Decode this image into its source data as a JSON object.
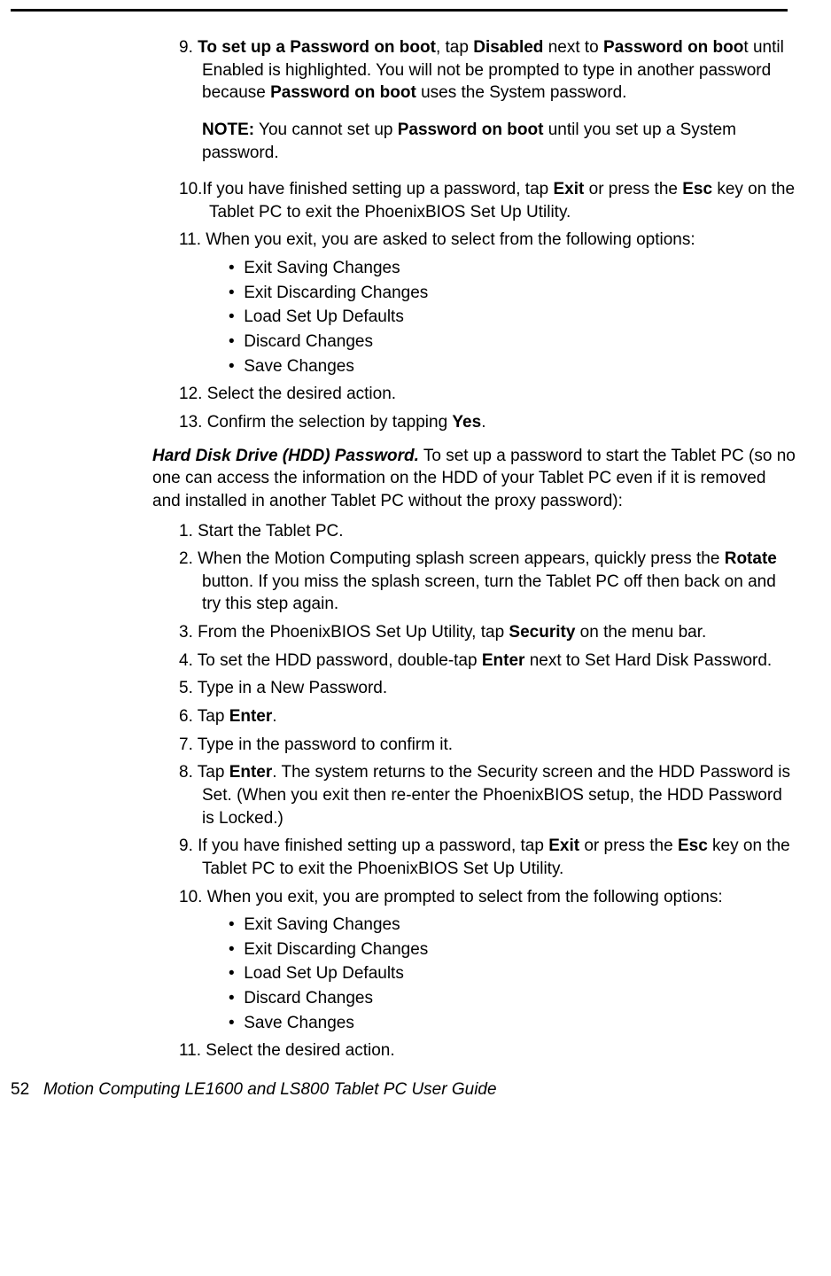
{
  "step9": {
    "prefix": "9. ",
    "t1": "To set up a Password on boot",
    "t2": ", tap ",
    "t3": "Disabled",
    "t4": " next to ",
    "t5": "Password on boo",
    "t6": "t until Enabled is highlighted. You will not be prompted to type in another password because ",
    "t7": "Password on boot",
    "t8": " uses the System password."
  },
  "note": {
    "label": "NOTE:",
    "t1": " You cannot set up ",
    "t2": "Password on boot",
    "t3": " until you set up a System password."
  },
  "step10": {
    "prefix": "10.",
    "t1": "If you have finished setting up a password, tap ",
    "t2": "Exit",
    "t3": " or press the ",
    "t4": "Esc",
    "t5": " key on the Tablet PC to exit the PhoenixBIOS Set Up Utility."
  },
  "step11": {
    "prefix": "11. ",
    "text": "When you exit, you are asked to select from the following options:"
  },
  "opts1": {
    "a": "Exit Saving Changes",
    "b": "Exit Discarding Changes",
    "c": "Load Set Up Defaults",
    "d": "Discard Changes",
    "e": "Save Changes"
  },
  "step12": {
    "prefix": "12. ",
    "text": "Select the desired action."
  },
  "step13": {
    "prefix": "13. ",
    "t1": "Confirm the selection by tapping ",
    "t2": "Yes",
    "t3": "."
  },
  "hdd": {
    "title": "Hard Disk Drive (HDD) Password.",
    "body": " To set up a password to start the Tablet PC (so no one can access the information on the HDD of your Tablet PC even if it is removed and installed in another Tablet PC without the proxy password):"
  },
  "s1": {
    "prefix": "1. ",
    "text": "Start the Tablet PC."
  },
  "s2": {
    "prefix": "2. ",
    "t1": "When the Motion Computing splash screen appears, quickly press the ",
    "t2": "Rotate",
    "t3": " button. If you miss the splash screen, turn the Tablet PC off then back on and try this step again."
  },
  "s3": {
    "prefix": "3. ",
    "t1": "From the PhoenixBIOS Set Up Utility, tap ",
    "t2": "Security",
    "t3": " on the menu bar."
  },
  "s4": {
    "prefix": "4. ",
    "t1": "To set the HDD password, double-tap ",
    "t2": "Enter",
    "t3": " next to Set Hard Disk Password."
  },
  "s5": {
    "prefix": "5. ",
    "text": "Type in a New Password."
  },
  "s6": {
    "prefix": "6. ",
    "t1": "Tap ",
    "t2": "Enter",
    "t3": "."
  },
  "s7": {
    "prefix": "7. ",
    "text": "Type in the password to confirm it."
  },
  "s8": {
    "prefix": "8. ",
    "t1": "Tap ",
    "t2": "Enter",
    "t3": ". The system returns to the Security screen and the HDD Password is Set. (When you exit then re-enter the PhoenixBIOS setup, the HDD Password is Locked.)"
  },
  "s9": {
    "prefix": "9. ",
    "t1": "If you have finished setting up a password, tap ",
    "t2": "Exit",
    "t3": " or press the ",
    "t4": "Esc",
    "t5": " key on the Tablet PC to exit the PhoenixBIOS Set Up Utility."
  },
  "s10": {
    "prefix": "10. ",
    "text": "When you exit, you are prompted to select from the following options:"
  },
  "opts2": {
    "a": "Exit Saving Changes",
    "b": "Exit Discarding Changes",
    "c": "Load Set Up Defaults",
    "d": "Discard Changes",
    "e": "Save Changes"
  },
  "s11": {
    "prefix": "11. ",
    "text": "Select the desired action."
  },
  "footer": {
    "page": "52",
    "title": "Motion Computing LE1600 and LS800 Tablet PC User Guide"
  }
}
